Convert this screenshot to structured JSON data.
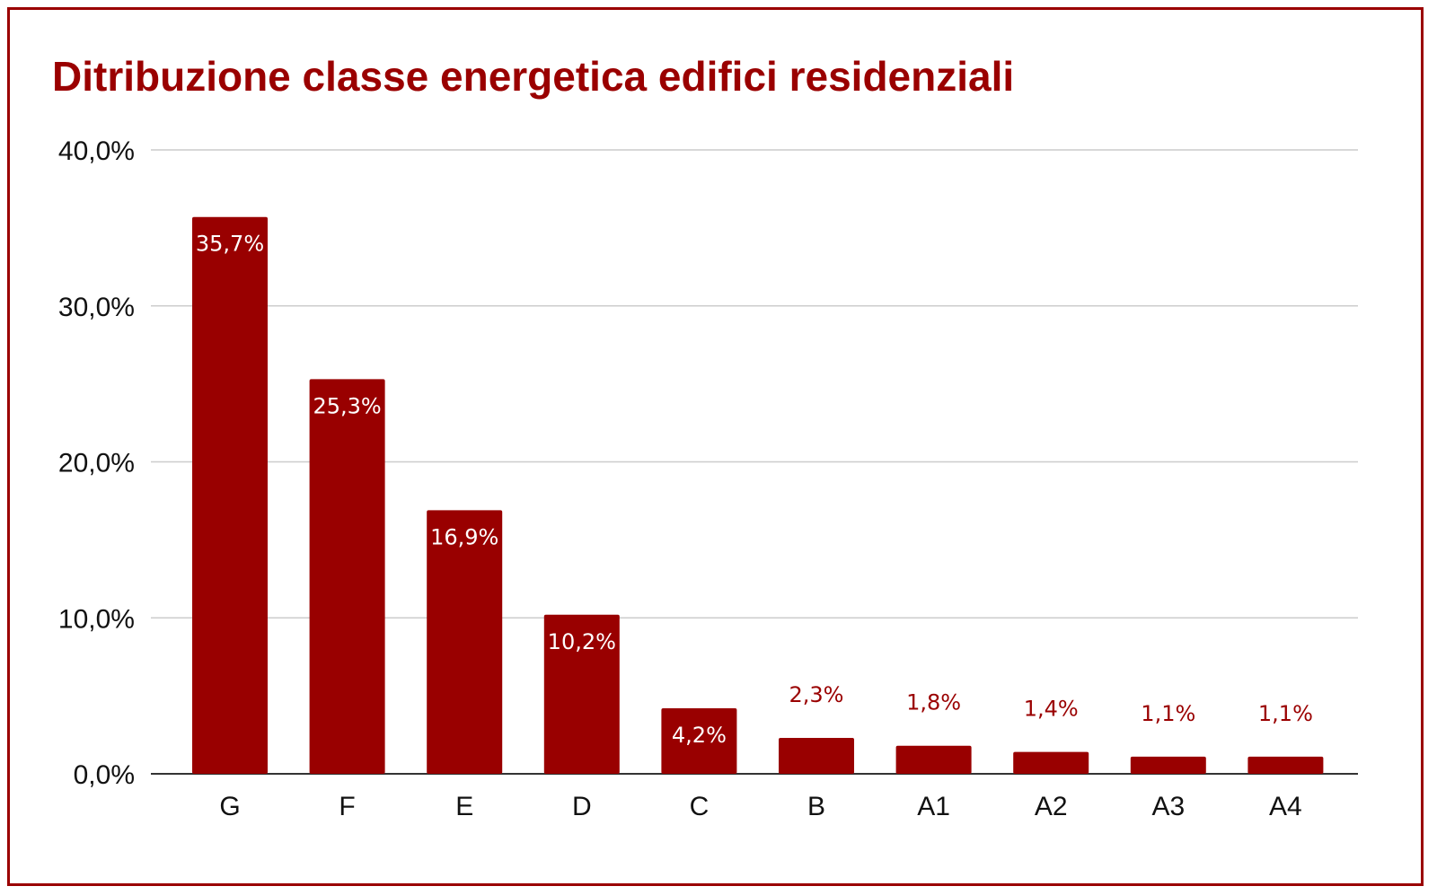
{
  "colors": {
    "bar": "#990000",
    "title": "#9a0000",
    "grid": "#cccccc",
    "axis": "#333333",
    "label_inside": "#ffffff",
    "label_outside": "#9a0000"
  },
  "chart_data": {
    "type": "bar",
    "title": "Ditribuzione classe energetica edifici residenziali",
    "xlabel": "",
    "ylabel": "",
    "categories": [
      "G",
      "F",
      "E",
      "D",
      "C",
      "B",
      "A1",
      "A2",
      "A3",
      "A4"
    ],
    "values": [
      35.7,
      25.3,
      16.9,
      10.2,
      4.2,
      2.3,
      1.8,
      1.4,
      1.1,
      1.1
    ],
    "value_labels": [
      "35,7%",
      "25,3%",
      "16,9%",
      "10,2%",
      "4,2%",
      "2,3%",
      "1,8%",
      "1,4%",
      "1,1%",
      "1,1%"
    ],
    "ylim": [
      0,
      40
    ],
    "yticks": [
      0,
      10,
      20,
      30,
      40
    ],
    "ytick_labels": [
      "0,0%",
      "10,0%",
      "20,0%",
      "30,0%",
      "40,0%"
    ],
    "grid": true,
    "legend": "none"
  }
}
